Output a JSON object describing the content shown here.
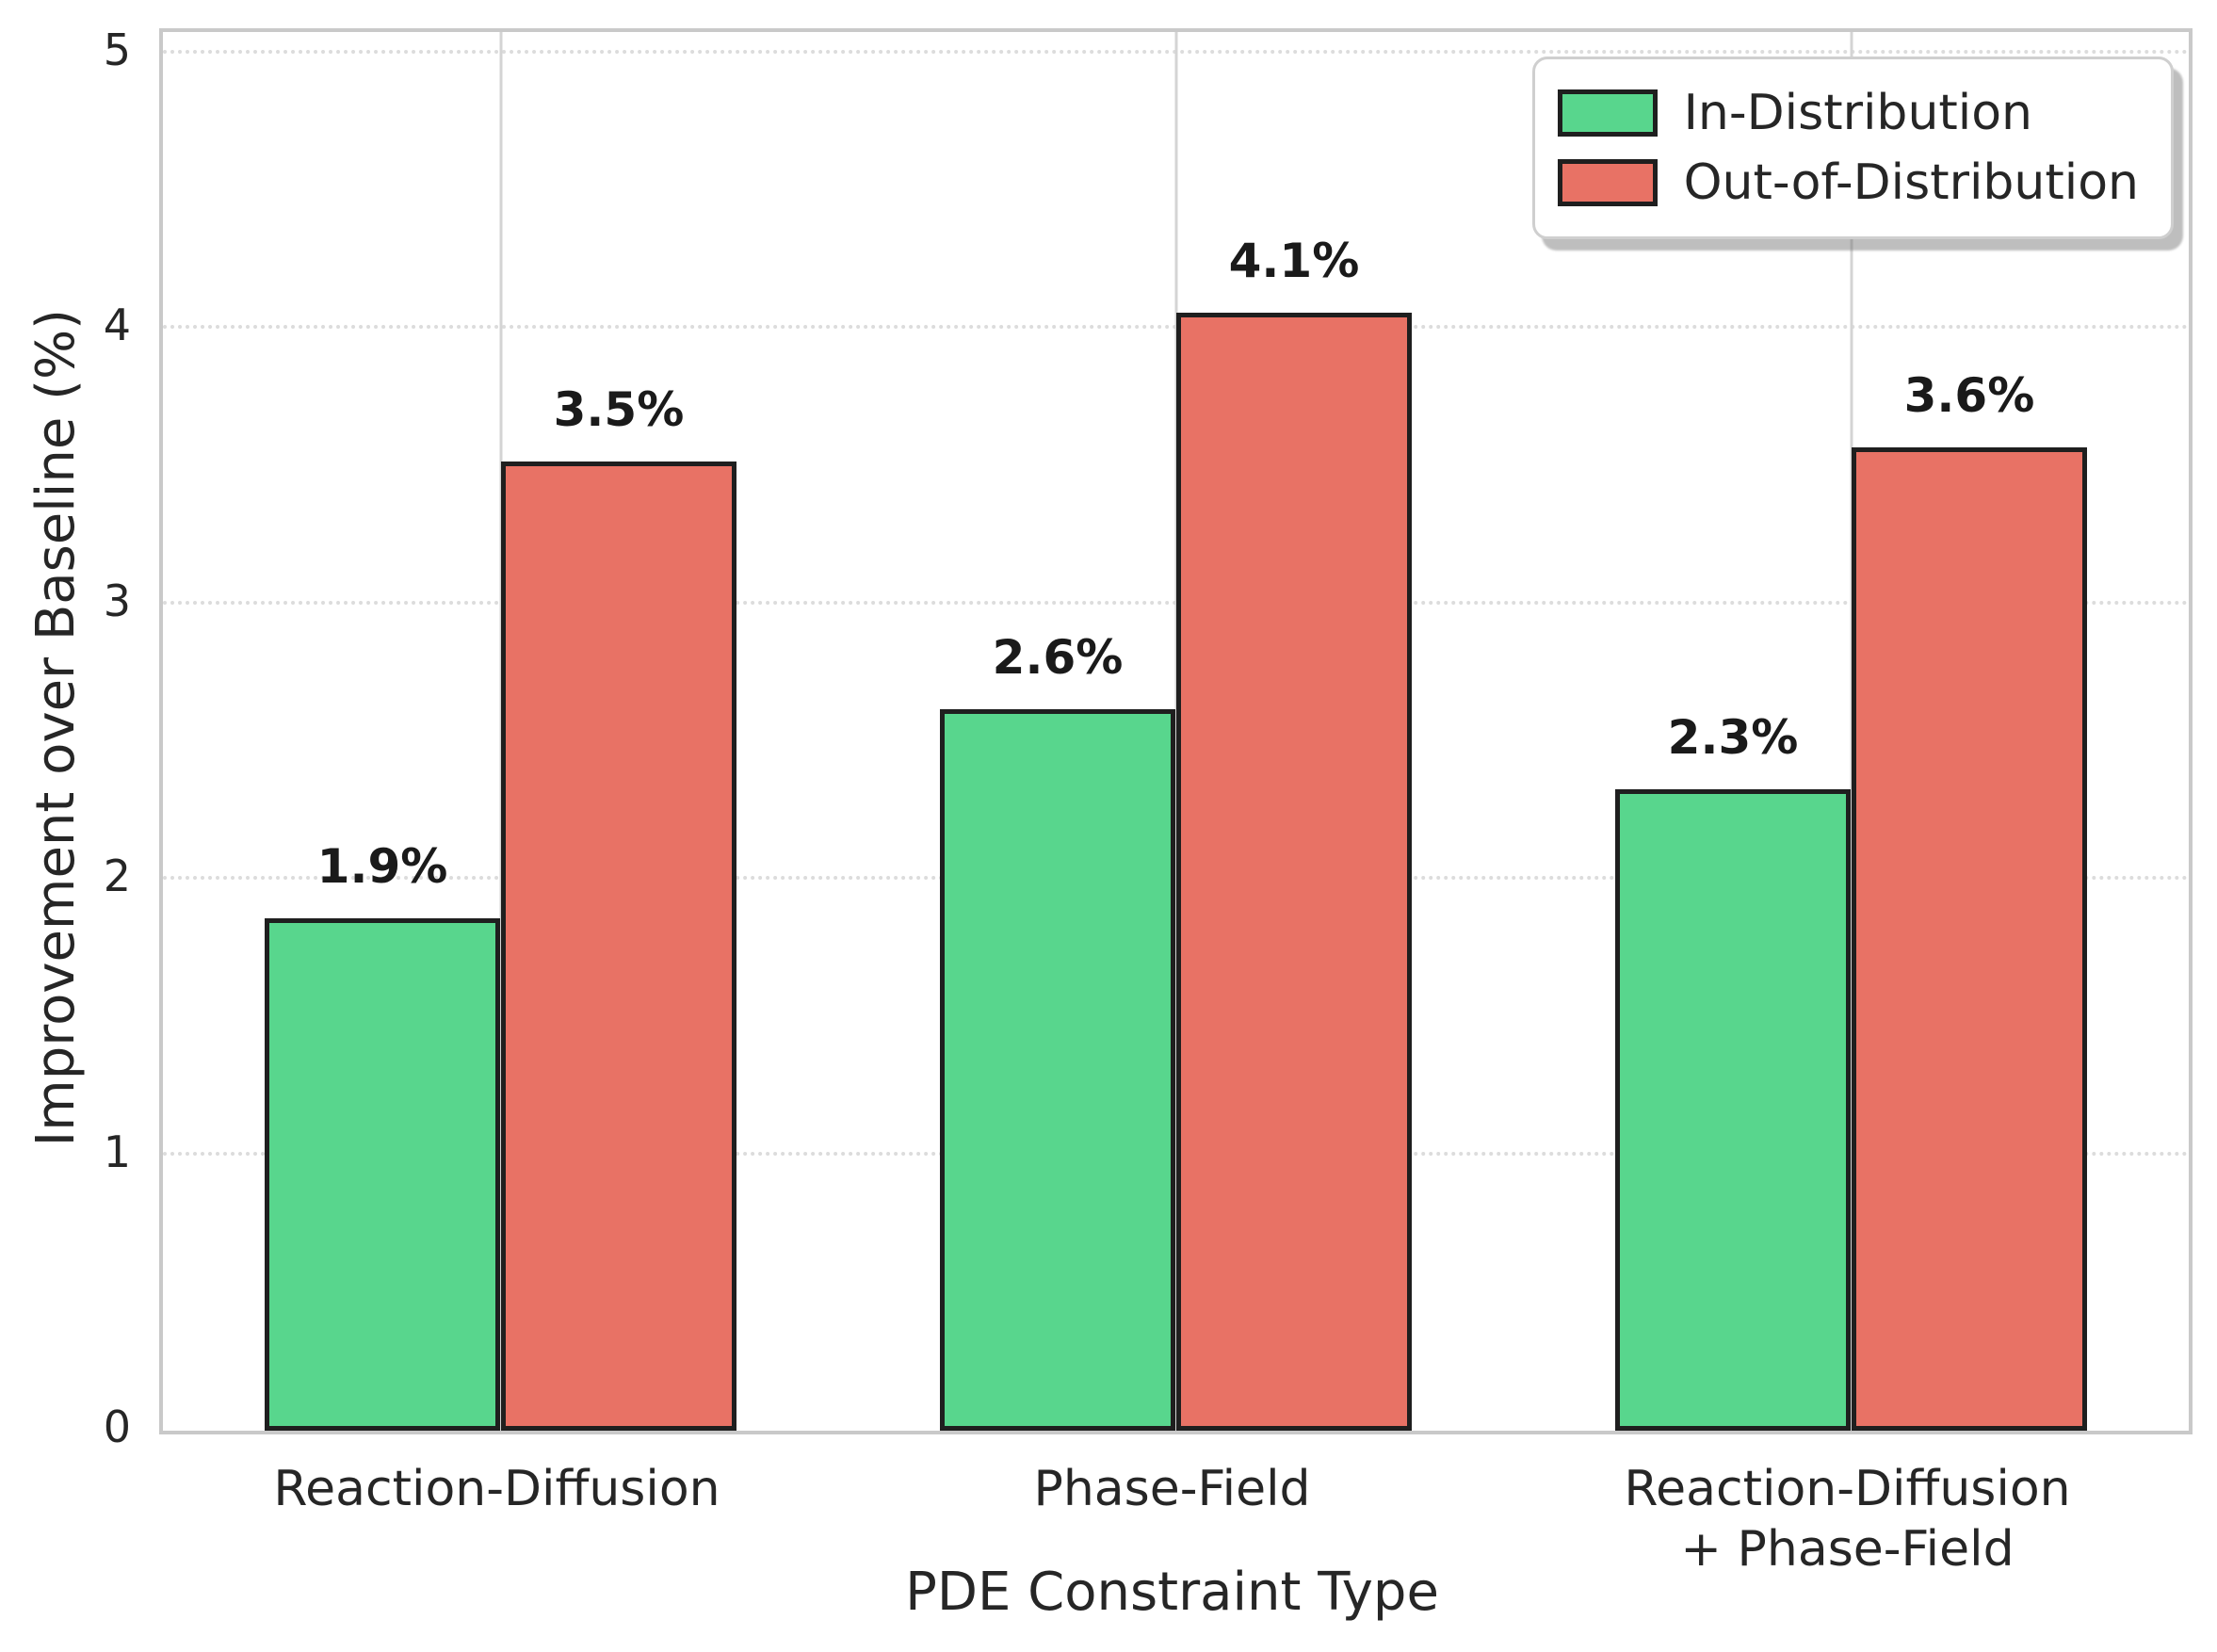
{
  "chart_data": {
    "type": "bar",
    "title": "",
    "xlabel": "PDE Constraint Type",
    "ylabel": "Improvement over Baseline (%)",
    "categories": [
      "Reaction-Diffusion",
      "Phase-Field",
      "Reaction-Diffusion\n+ Phase-Field"
    ],
    "series": [
      {
        "name": "In-Distribution",
        "color": "#58d68d",
        "values": [
          1.86,
          2.62,
          2.33
        ],
        "value_labels": [
          "1.9%",
          "2.6%",
          "2.3%"
        ]
      },
      {
        "name": "Out-of-Distribution",
        "color": "#e87265",
        "values": [
          3.52,
          4.06,
          3.57
        ],
        "value_labels": [
          "3.5%",
          "4.1%",
          "3.6%"
        ]
      }
    ],
    "ylim": [
      0,
      5.078
    ],
    "yticks": [
      0,
      1,
      2,
      3,
      4,
      5
    ],
    "bar_edge_color": "#1f1f1f",
    "grid": "horizontal dotted gridlines at integer y values; solid vertical gridlines at category centers",
    "legend_position": "upper right",
    "legend_items": [
      "In-Distribution",
      "Out-of-Distribution"
    ]
  }
}
